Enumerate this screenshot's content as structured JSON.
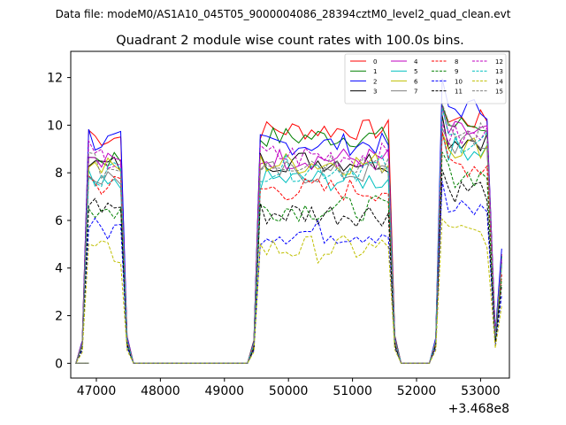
{
  "figure": {
    "suptitle": "Data file: modeM0/AS1A10_045T05_9000004086_28394cztM0_level2_quad_clean.evt"
  },
  "chart_data": {
    "type": "line",
    "title": "Quadrant 2 module wise count rates with 100.0s bins.",
    "xlabel": "",
    "ylabel": "",
    "xlim": [
      46600,
      53450
    ],
    "ylim": [
      -0.62,
      13.1
    ],
    "x_ticks": [
      47000,
      48000,
      49000,
      50000,
      51000,
      52000,
      53000
    ],
    "x_tick_labels": [
      "47000",
      "48000",
      "49000",
      "50000",
      "51000",
      "52000",
      "53000"
    ],
    "y_ticks": [
      0,
      2,
      4,
      6,
      8,
      10,
      12
    ],
    "y_tick_labels": [
      "0",
      "2",
      "4",
      "6",
      "8",
      "10",
      "12"
    ],
    "x_offset_label": "+3.468e8",
    "grid": false,
    "legend_position": "top-right",
    "legend_columns": 4,
    "segments": [
      {
        "x_start": 46880,
        "x_end": 47380
      },
      {
        "x_start": 49560,
        "x_end": 51560
      },
      {
        "x_start": 52400,
        "x_end": 53130
      }
    ],
    "series": [
      {
        "name": "0",
        "color": "#ff0000",
        "style": "solid",
        "levels": [
          9.5,
          9.8,
          10.2
        ]
      },
      {
        "name": "1",
        "color": "#008000",
        "style": "solid",
        "levels": [
          8.6,
          9.5,
          10.0
        ]
      },
      {
        "name": "2",
        "color": "#0000ff",
        "style": "solid",
        "levels": [
          9.3,
          9.2,
          10.7
        ]
      },
      {
        "name": "3",
        "color": "#000000",
        "style": "solid",
        "levels": [
          8.3,
          8.5,
          9.4
        ]
      },
      {
        "name": "4",
        "color": "#c000c0",
        "style": "solid",
        "levels": [
          8.4,
          8.6,
          9.7
        ]
      },
      {
        "name": "5",
        "color": "#00bfbf",
        "style": "solid",
        "levels": [
          7.4,
          7.7,
          9.0
        ]
      },
      {
        "name": "6",
        "color": "#bfbf00",
        "style": "solid",
        "levels": [
          8.2,
          8.4,
          9.1
        ]
      },
      {
        "name": "7",
        "color": "#808080",
        "style": "solid",
        "levels": [
          7.8,
          8.0,
          9.2
        ]
      },
      {
        "name": "8",
        "color": "#ff0000",
        "style": "dashed",
        "levels": [
          7.5,
          7.3,
          8.3
        ]
      },
      {
        "name": "9",
        "color": "#008000",
        "style": "dashed",
        "levels": [
          6.4,
          6.5,
          7.9
        ]
      },
      {
        "name": "10",
        "color": "#0000ff",
        "style": "dashed",
        "levels": [
          5.6,
          5.5,
          6.4
        ]
      },
      {
        "name": "11",
        "color": "#000000",
        "style": "dashed",
        "levels": [
          6.6,
          6.3,
          7.3
        ]
      },
      {
        "name": "12",
        "color": "#c000c0",
        "style": "dashed",
        "levels": [
          8.5,
          8.7,
          9.5
        ]
      },
      {
        "name": "13",
        "color": "#00bfbf",
        "style": "dashed",
        "levels": [
          8.0,
          8.2,
          9.4
        ]
      },
      {
        "name": "14",
        "color": "#bfbf00",
        "style": "dashed",
        "levels": [
          4.6,
          4.8,
          5.4
        ]
      },
      {
        "name": "15",
        "color": "#808080",
        "style": "dashed",
        "levels": [
          8.2,
          8.5,
          9.6
        ]
      }
    ]
  }
}
